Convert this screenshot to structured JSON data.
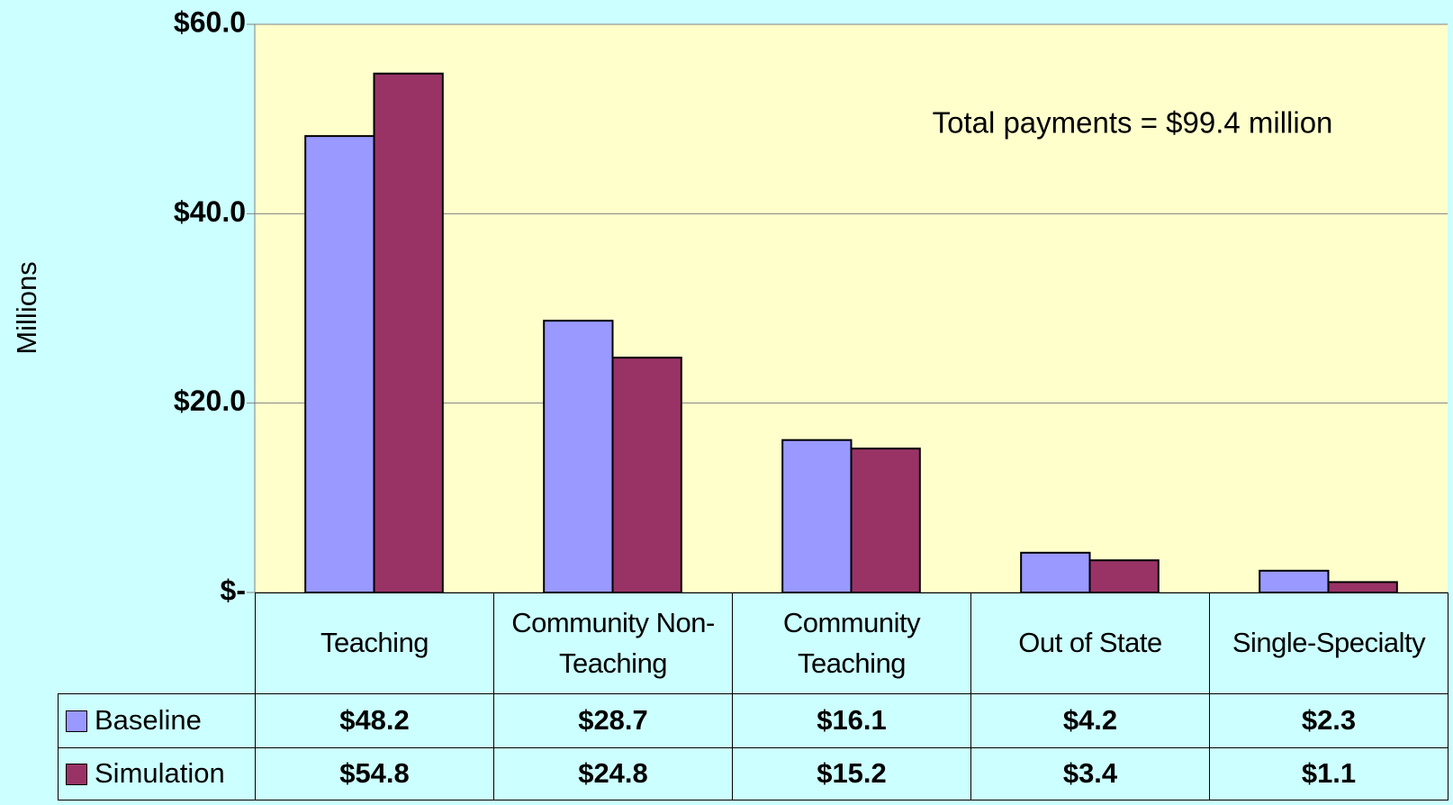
{
  "chart_data": {
    "type": "bar",
    "ylabel": "Millions",
    "annotation": "Total payments = $99.4 million",
    "categories": [
      "Teaching",
      "Community Non-Teaching",
      "Community Teaching",
      "Out of State",
      "Single-Specialty"
    ],
    "series": [
      {
        "name": "Baseline",
        "color": "#9999ff",
        "values": [
          48.2,
          28.7,
          16.1,
          4.2,
          2.3
        ],
        "value_labels": [
          "$48.2",
          "$28.7",
          "$16.1",
          "$4.2",
          "$2.3"
        ]
      },
      {
        "name": "Simulation",
        "color": "#993366",
        "values": [
          54.8,
          24.8,
          15.2,
          3.4,
          1.1
        ],
        "value_labels": [
          "$54.8",
          "$24.8",
          "$15.2",
          "$3.4",
          "$1.1"
        ]
      }
    ],
    "ylim": [
      0,
      60
    ],
    "yticks": [
      {
        "value": 0,
        "label": "$-"
      },
      {
        "value": 20,
        "label": "$20.0"
      },
      {
        "value": 40,
        "label": "$40.0"
      },
      {
        "value": 60,
        "label": "$60.0"
      }
    ],
    "grid": true
  }
}
